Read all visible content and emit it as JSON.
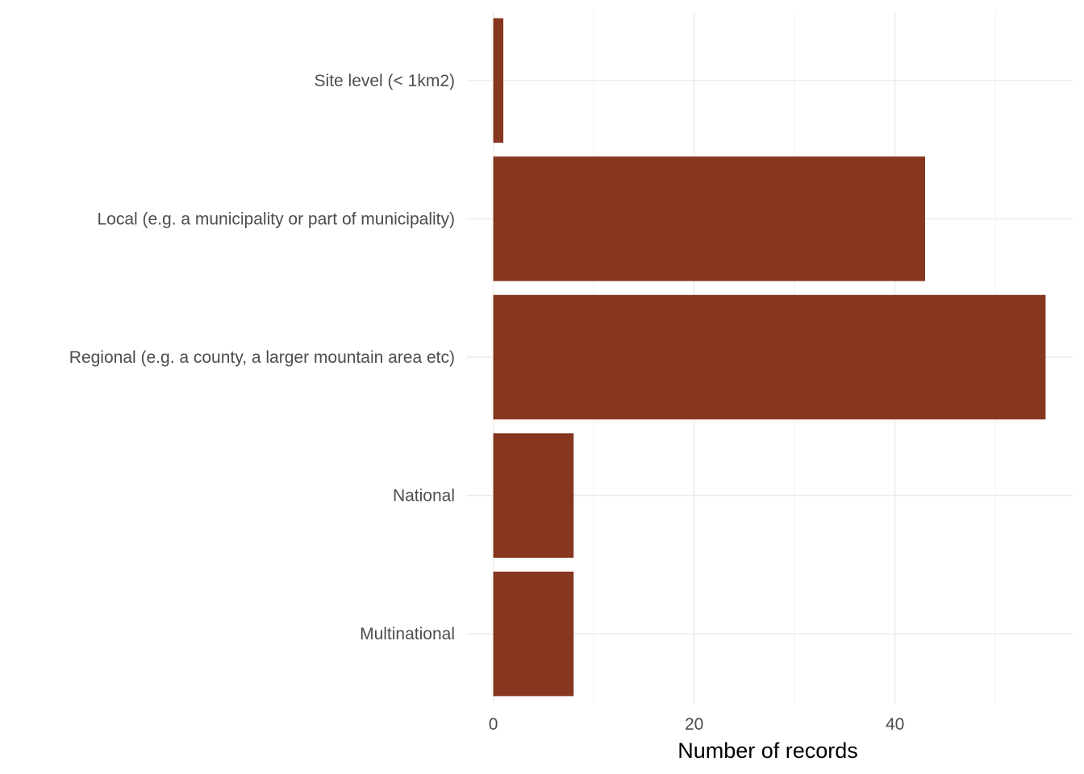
{
  "chart_data": {
    "type": "bar",
    "orientation": "horizontal",
    "categories": [
      "Site level (< 1km2)",
      "Local (e.g. a municipality or part of municipality)",
      "Regional (e.g. a county, a larger mountain area etc)",
      "National",
      "Multinational"
    ],
    "values": [
      1,
      43,
      55,
      8,
      8
    ],
    "title": "",
    "xlabel": "Number of records",
    "ylabel": "",
    "xlim": [
      -2.7,
      57.7
    ],
    "x_ticks": [
      0,
      20,
      40
    ],
    "x_tick_labels": [
      "0",
      "20",
      "40"
    ],
    "grid": true,
    "legend": "none",
    "bar_color": "#87361f"
  }
}
